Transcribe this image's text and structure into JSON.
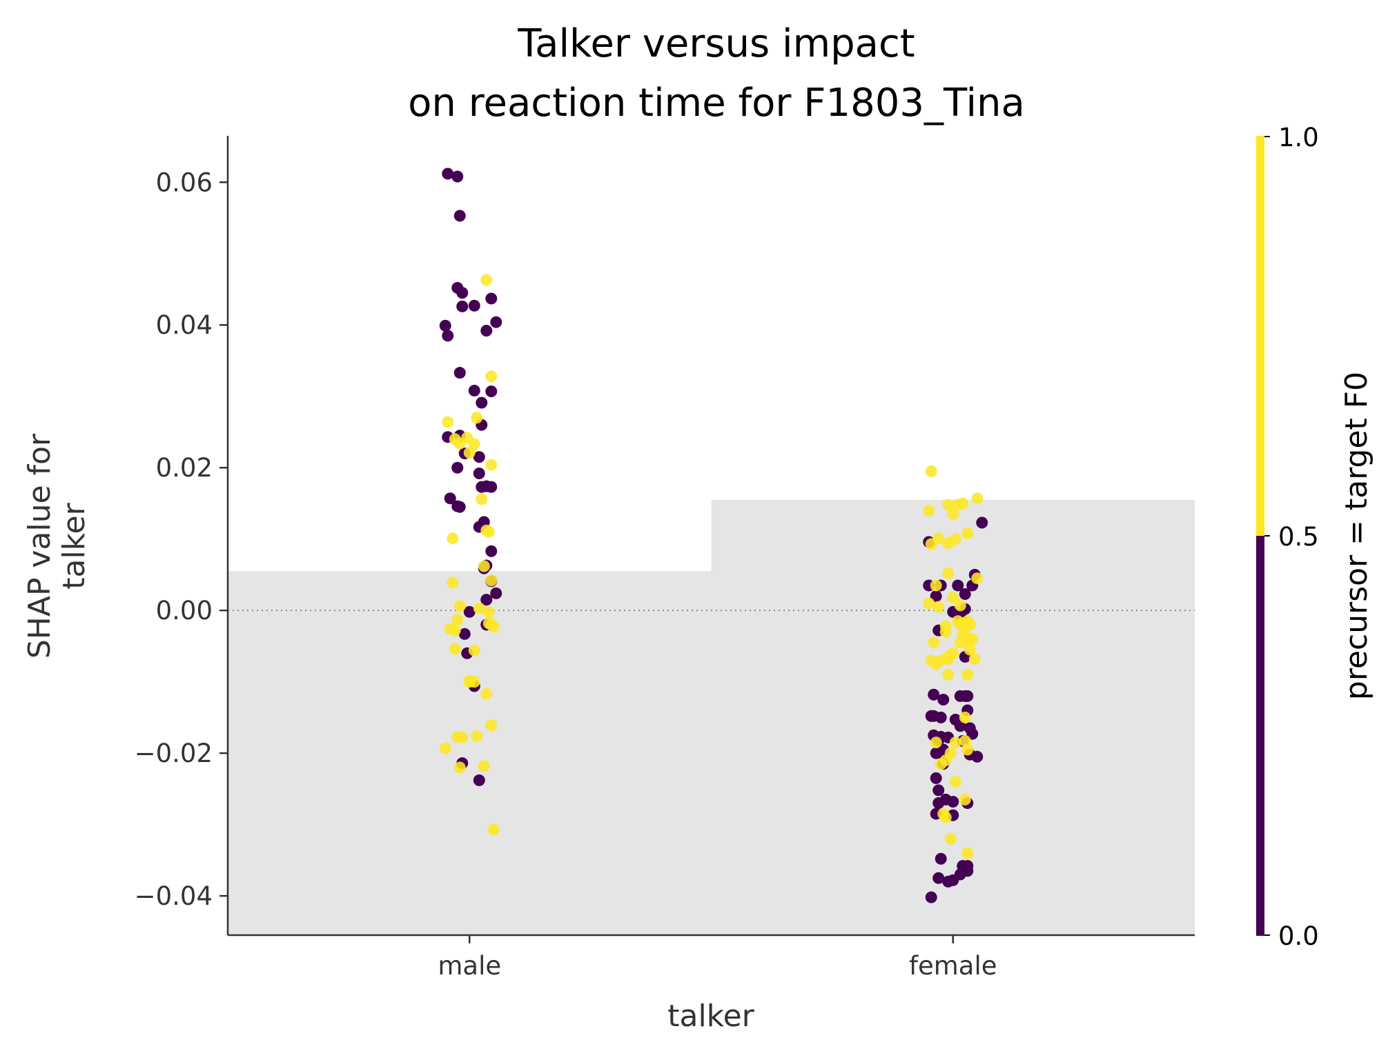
{
  "chart_data": {
    "type": "scatter",
    "title_lines": [
      "Talker versus impact",
      "on reaction time for F1803_Tina"
    ],
    "xlabel": "talker",
    "ylabel_lines": [
      "SHAP value for",
      "talker"
    ],
    "categories": [
      "male",
      "female"
    ],
    "ylim": [
      -0.0455,
      0.0665
    ],
    "yticks": [
      -0.04,
      -0.02,
      0.0,
      0.02,
      0.04,
      0.06
    ],
    "ytick_labels": [
      "−0.04",
      "−0.02",
      "0.00",
      "0.02",
      "0.04",
      "0.06"
    ],
    "reference_line": 0.0,
    "background_bars": [
      {
        "category": "male",
        "value": 0.0055
      },
      {
        "category": "female",
        "value": 0.0155
      }
    ],
    "colors": {
      "false": "#440154",
      "true": "#fde725",
      "background": "#e5e5e5"
    },
    "colorbar": {
      "label": "precursor = target F0",
      "ticks": [
        "0.0",
        "0.5",
        "1.0"
      ]
    },
    "series": [
      {
        "category": "male",
        "offsets": [
          -0.09,
          -0.05,
          -0.04,
          -0.05,
          -0.03,
          0.09,
          0.02,
          -0.03,
          0.11,
          -0.1,
          0.07,
          -0.09,
          -0.04,
          0.09,
          0.02,
          0.05,
          0.05,
          -0.04,
          -0.09,
          -0.02,
          0.04,
          -0.05,
          0.04,
          0.07,
          0.09,
          0.07,
          0.05,
          -0.08,
          -0.05,
          -0.04,
          0.06,
          0.04,
          0.09,
          0.07,
          0.06,
          0.09,
          0.11,
          0.07,
          0.0,
          0.07,
          -0.02,
          -0.01,
          0.02,
          -0.03,
          0.04,
          0.07,
          0.09,
          0.03,
          -0.09,
          -0.01,
          -0.06,
          -0.04,
          0.02,
          0.0,
          0.09,
          0.05,
          0.08,
          0.07,
          -0.07,
          0.06,
          0.09,
          -0.07,
          -0.04,
          0.04,
          0.08,
          -0.05,
          0.08,
          0.09,
          0.1,
          -0.08,
          -0.06,
          -0.06,
          0.02,
          0.0,
          0.0,
          0.02,
          0.07,
          0.09,
          0.03,
          -0.05,
          -0.03,
          -0.1,
          0.06,
          -0.04,
          0.1
        ],
        "values": [
          0.0612,
          0.0608,
          0.0553,
          0.0452,
          0.0445,
          0.0437,
          0.0427,
          0.0426,
          0.0404,
          0.0399,
          0.0392,
          0.0385,
          0.0333,
          0.0307,
          0.0308,
          0.0291,
          0.026,
          0.0245,
          0.0243,
          0.022,
          0.0215,
          0.02,
          0.0192,
          0.0174,
          0.0173,
          0.0174,
          0.0173,
          0.0157,
          0.0146,
          0.0145,
          0.0124,
          0.0117,
          0.0083,
          0.0063,
          0.0059,
          0.0041,
          0.0024,
          0.0015,
          -0.0002,
          -0.002,
          -0.0033,
          -0.006,
          -0.0106,
          -0.0214,
          -0.0238,
          0.0463,
          0.0328,
          0.027,
          0.0264,
          0.0242,
          0.024,
          0.0234,
          0.0233,
          0.0221,
          0.0204,
          0.0156,
          0.011,
          0.0112,
          0.0101,
          0.0062,
          0.0042,
          0.0039,
          0.0006,
          0.0003,
          -0.0002,
          -0.0013,
          -0.0018,
          -0.002,
          -0.0023,
          -0.0026,
          -0.0028,
          -0.0054,
          -0.0056,
          -0.0099,
          -0.01,
          -0.01,
          -0.0117,
          -0.0161,
          -0.0176,
          -0.0177,
          -0.0178,
          -0.0193,
          -0.0218,
          -0.022,
          -0.0307
        ],
        "precursor": [
          0,
          0,
          0,
          0,
          0,
          0,
          0,
          0,
          0,
          0,
          0,
          0,
          0,
          0,
          0,
          0,
          0,
          0,
          0,
          0,
          0,
          0,
          0,
          0,
          0,
          0,
          0,
          0,
          0,
          0,
          0,
          0,
          0,
          0,
          0,
          0,
          0,
          0,
          0,
          0,
          0,
          0,
          0,
          0,
          0,
          1,
          1,
          1,
          1,
          1,
          1,
          1,
          1,
          1,
          1,
          1,
          1,
          1,
          1,
          1,
          1,
          1,
          1,
          1,
          1,
          1,
          1,
          1,
          1,
          1,
          1,
          1,
          1,
          1,
          1,
          1,
          1,
          1,
          1,
          1,
          1,
          1,
          1,
          1,
          1
        ]
      },
      {
        "category": "female",
        "offsets": [
          0.12,
          -0.1,
          0.02,
          -0.1,
          -0.07,
          0.09,
          -0.05,
          0.0,
          0.05,
          -0.06,
          0.08,
          0.05,
          0.03,
          0.05,
          -0.08,
          -0.08,
          0.05,
          0.03,
          -0.04,
          0.06,
          -0.05,
          0.01,
          0.07,
          0.03,
          -0.08,
          -0.05,
          -0.06,
          -0.04,
          0.04,
          -0.05,
          -0.04,
          -0.07,
          -0.02,
          -0.07,
          -0.06,
          -0.03,
          0.0,
          0.0,
          -0.07,
          0.06,
          -0.06,
          -0.05,
          0.06,
          0.03,
          0.06,
          0.04,
          0.0,
          -0.09,
          -0.06,
          -0.02,
          -0.09,
          0.06,
          0.08,
          0.07,
          0.1,
          -0.09,
          0.02,
          -0.02,
          0.0,
          0.1,
          0.04,
          0.06,
          0.01,
          -0.06,
          -0.02,
          -0.09,
          -0.1,
          -0.02,
          -0.07,
          0.0,
          0.03,
          0.03,
          0.02,
          0.04,
          0.04,
          0.05,
          0.06,
          0.07,
          -0.03,
          0.08,
          0.07,
          0.06,
          0.03,
          0.07,
          0.0,
          -0.08,
          -0.02,
          -0.05,
          -0.07,
          0.09,
          0.06,
          -0.07,
          0.01,
          0.05,
          0.06,
          -0.03,
          -0.01,
          -0.05,
          -0.03,
          -0.04,
          0.05,
          -0.01,
          0.06,
          0.01,
          0.05,
          -0.02,
          -0.1,
          -0.06,
          -0.03,
          -0.02,
          -0.09,
          0.1
        ],
        "values": [
          0.0123,
          0.0035,
          0.0035,
          0.0096,
          0.002,
          0.005,
          0.0035,
          -0.0002,
          0.0002,
          -0.0028,
          0.0035,
          0.0023,
          -0.0008,
          -0.0065,
          -0.0118,
          -0.0148,
          -0.012,
          -0.012,
          -0.0125,
          -0.014,
          -0.015,
          -0.0153,
          -0.0202,
          -0.0162,
          -0.0175,
          -0.0177,
          -0.0182,
          -0.0195,
          -0.0183,
          -0.02,
          -0.0215,
          -0.02,
          -0.0178,
          -0.0235,
          -0.0252,
          -0.0265,
          -0.0268,
          -0.0287,
          -0.0285,
          -0.027,
          -0.027,
          -0.0348,
          -0.0358,
          -0.037,
          -0.0365,
          -0.0358,
          -0.0378,
          -0.0402,
          -0.0375,
          -0.038,
          -0.0148,
          -0.012,
          -0.0173,
          -0.0165,
          -0.0205,
          0.0195,
          0.0148,
          0.0148,
          0.0135,
          0.0157,
          0.015,
          0.0108,
          0.01,
          0.0101,
          0.0094,
          0.0093,
          0.014,
          0.0052,
          0.0035,
          0.0018,
          0.0007,
          -0.002,
          -0.0015,
          -0.0018,
          -0.0035,
          -0.0025,
          -0.0015,
          -0.002,
          -0.0022,
          -0.004,
          -0.004,
          -0.0043,
          -0.0045,
          -0.0055,
          -0.006,
          -0.0045,
          -0.0068,
          -0.007,
          -0.0075,
          -0.0068,
          -0.009,
          -0.0185,
          -0.0185,
          -0.0183,
          -0.0195,
          -0.021,
          -0.02,
          -0.0215,
          -0.029,
          -0.0285,
          -0.0265,
          -0.032,
          -0.034,
          -0.024,
          -0.015,
          -0.009,
          0.001,
          0.0005,
          -0.003,
          -0.0065,
          -0.007,
          0.0045
        ],
        "precursor": [
          0,
          0,
          0,
          0,
          0,
          0,
          0,
          0,
          0,
          0,
          0,
          0,
          0,
          0,
          0,
          0,
          0,
          0,
          0,
          0,
          0,
          0,
          0,
          0,
          0,
          0,
          0,
          0,
          0,
          0,
          0,
          0,
          0,
          0,
          0,
          0,
          0,
          0,
          0,
          0,
          0,
          0,
          0,
          0,
          0,
          0,
          0,
          0,
          0,
          0,
          0,
          0,
          0,
          0,
          0,
          1,
          1,
          1,
          1,
          1,
          1,
          1,
          1,
          1,
          1,
          1,
          1,
          1,
          1,
          1,
          1,
          1,
          1,
          1,
          1,
          1,
          1,
          1,
          1,
          1,
          1,
          1,
          1,
          1,
          1,
          1,
          1,
          1,
          1,
          1,
          1,
          1,
          1,
          1,
          1,
          1,
          1,
          1,
          1,
          1,
          1,
          1,
          1,
          1,
          1,
          1,
          1,
          1,
          1,
          1,
          1,
          1
        ]
      }
    ]
  }
}
